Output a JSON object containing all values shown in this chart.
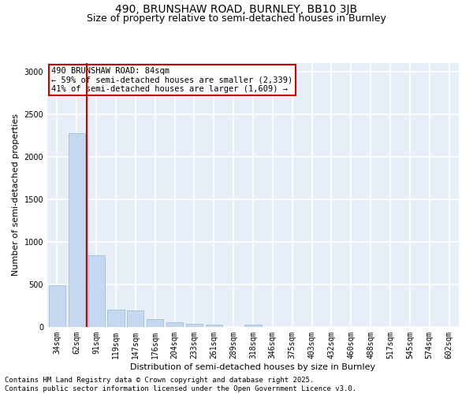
{
  "title_line1": "490, BRUNSHAW ROAD, BURNLEY, BB10 3JB",
  "title_line2": "Size of property relative to semi-detached houses in Burnley",
  "xlabel": "Distribution of semi-detached houses by size in Burnley",
  "ylabel": "Number of semi-detached properties",
  "categories": [
    "34sqm",
    "62sqm",
    "91sqm",
    "119sqm",
    "147sqm",
    "176sqm",
    "204sqm",
    "233sqm",
    "261sqm",
    "289sqm",
    "318sqm",
    "346sqm",
    "375sqm",
    "403sqm",
    "432sqm",
    "460sqm",
    "488sqm",
    "517sqm",
    "545sqm",
    "574sqm",
    "602sqm"
  ],
  "values": [
    490,
    2280,
    840,
    205,
    190,
    95,
    60,
    35,
    25,
    0,
    25,
    0,
    0,
    0,
    0,
    0,
    0,
    0,
    0,
    0,
    0
  ],
  "bar_color": "#c5d8f0",
  "bar_edge_color": "#90b8d8",
  "property_line_color": "#cc0000",
  "property_line_x": 1.5,
  "annotation_text": "490 BRUNSHAW ROAD: 84sqm\n← 59% of semi-detached houses are smaller (2,339)\n41% of semi-detached houses are larger (1,609) →",
  "annotation_box_color": "#cc0000",
  "ylim": [
    0,
    3100
  ],
  "yticks": [
    0,
    500,
    1000,
    1500,
    2000,
    2500,
    3000
  ],
  "background_color": "#e8eef8",
  "grid_color": "#ffffff",
  "footer_line1": "Contains HM Land Registry data © Crown copyright and database right 2025.",
  "footer_line2": "Contains public sector information licensed under the Open Government Licence v3.0.",
  "title_fontsize": 10,
  "subtitle_fontsize": 9,
  "axis_label_fontsize": 8,
  "tick_fontsize": 7,
  "annotation_fontsize": 7.5,
  "footer_fontsize": 6.5
}
